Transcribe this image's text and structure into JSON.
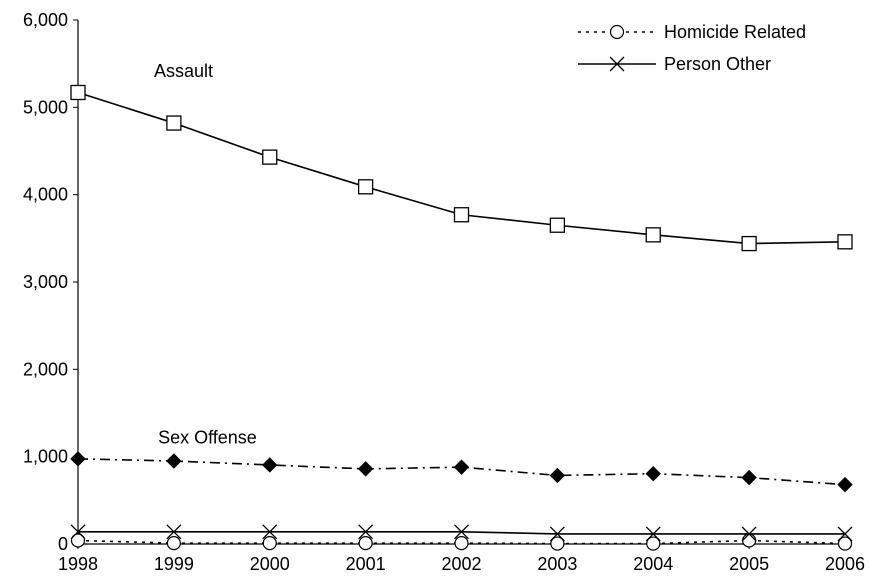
{
  "chart_data": {
    "type": "line",
    "title": "",
    "xlabel": "",
    "ylabel": "",
    "categories": [
      "1998",
      "1999",
      "2000",
      "2001",
      "2002",
      "2003",
      "2004",
      "2005",
      "2006"
    ],
    "ylim": [
      0,
      6000
    ],
    "yticks": [
      0,
      1000,
      2000,
      3000,
      4000,
      5000,
      6000
    ],
    "ytick_labels": [
      "0",
      "1,000",
      "2,000",
      "3,000",
      "4,000",
      "5,000",
      "6,000"
    ],
    "grid": false,
    "legend_placement": "top-right",
    "series": [
      {
        "key": "assault",
        "name": "Assault",
        "values": [
          5170,
          4820,
          4430,
          4090,
          3770,
          3650,
          3540,
          3440,
          3460
        ],
        "marker": "open-square",
        "line_style": "solid",
        "label_position": "inline"
      },
      {
        "key": "sex_offense",
        "name": "Sex Offense",
        "values": [
          975,
          950,
          905,
          860,
          880,
          785,
          805,
          760,
          680
        ],
        "marker": "filled-diamond",
        "line_style": "dash-dot",
        "label_position": "inline"
      },
      {
        "key": "person_other",
        "name": "Person Other",
        "values": [
          140,
          140,
          140,
          140,
          140,
          115,
          115,
          115,
          115
        ],
        "marker": "x",
        "line_style": "solid",
        "label_position": "legend"
      },
      {
        "key": "homicide_related",
        "name": "Homicide Related",
        "values": [
          40,
          10,
          10,
          10,
          10,
          5,
          5,
          40,
          5
        ],
        "marker": "open-circle",
        "line_style": "dotted",
        "label_position": "legend"
      }
    ],
    "legend": [
      "Homicide Related",
      "Person Other"
    ]
  }
}
